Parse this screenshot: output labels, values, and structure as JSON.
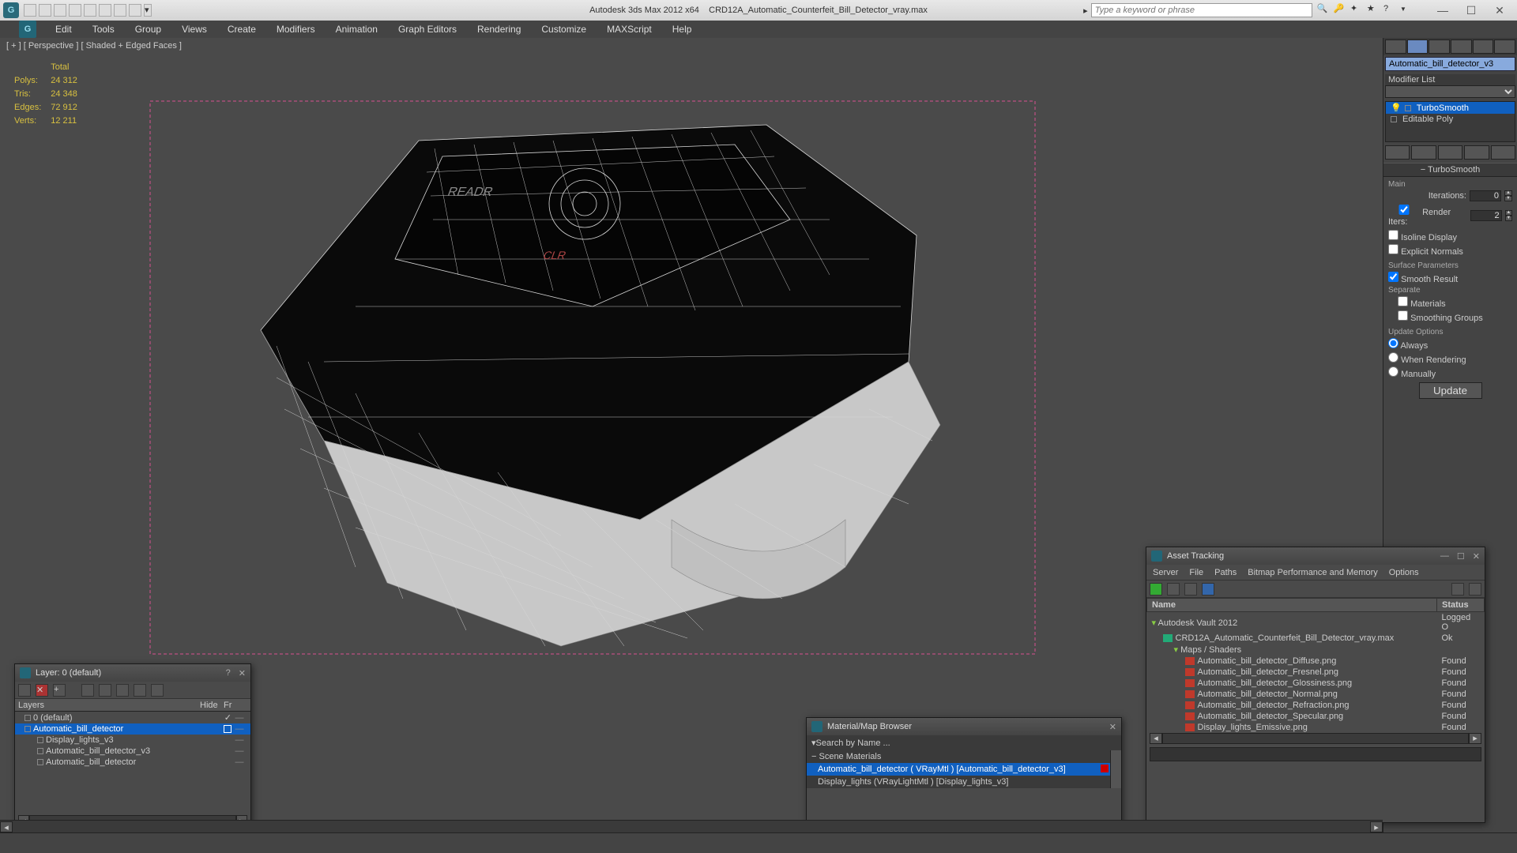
{
  "app": {
    "title_left": "Autodesk 3ds Max 2012 x64",
    "title_right": "CRD12A_Automatic_Counterfeit_Bill_Detector_vray.max",
    "search_placeholder": "Type a keyword or phrase"
  },
  "menubar": [
    "Edit",
    "Tools",
    "Group",
    "Views",
    "Create",
    "Modifiers",
    "Animation",
    "Graph Editors",
    "Rendering",
    "Customize",
    "MAXScript",
    "Help"
  ],
  "viewport": {
    "label": "[ + ] [ Perspective ] [ Shaded + Edged Faces ]",
    "stats": {
      "header": "Total",
      "rows": [
        {
          "k": "Polys:",
          "v": "24 312"
        },
        {
          "k": "Tris:",
          "v": "24 348"
        },
        {
          "k": "Edges:",
          "v": "72 912"
        },
        {
          "k": "Verts:",
          "v": "12 211"
        }
      ]
    }
  },
  "command_panel": {
    "object_name": "Automatic_bill_detector_v3",
    "modifier_list_label": "Modifier List",
    "stack": [
      {
        "name": "TurboSmooth",
        "selected": true,
        "bulb": true
      },
      {
        "name": "Editable Poly",
        "selected": false,
        "bulb": false
      }
    ],
    "rollout_title": "TurboSmooth",
    "main_label": "Main",
    "iterations_label": "Iterations:",
    "iterations_value": "0",
    "render_iters_label": "Render Iters:",
    "render_iters_value": "2",
    "isoline": "Isoline Display",
    "explicit": "Explicit Normals",
    "surface_params": "Surface Parameters",
    "smooth_result": "Smooth Result",
    "separate": "Separate",
    "sep_materials": "Materials",
    "sep_smoothing": "Smoothing Groups",
    "update_options": "Update Options",
    "update_always": "Always",
    "update_render": "When Rendering",
    "update_manual": "Manually",
    "update_btn": "Update"
  },
  "layer_panel": {
    "title": "Layer: 0 (default)",
    "col_layers": "Layers",
    "col_hide": "Hide",
    "col_fr": "Fr",
    "items": [
      {
        "name": "0 (default)",
        "indent": 0,
        "sel": false,
        "checked": true
      },
      {
        "name": "Automatic_bill_detector",
        "indent": 0,
        "sel": true,
        "checked": false,
        "box": true
      },
      {
        "name": "Display_lights_v3",
        "indent": 1,
        "sel": false
      },
      {
        "name": "Automatic_bill_detector_v3",
        "indent": 1,
        "sel": false
      },
      {
        "name": "Automatic_bill_detector",
        "indent": 1,
        "sel": false
      }
    ]
  },
  "material_panel": {
    "title": "Material/Map Browser",
    "search": "Search by Name ...",
    "category": "Scene Materials",
    "items": [
      {
        "name": "Automatic_bill_detector ( VRayMtl ) [Automatic_bill_detector_v3]",
        "sel": true
      },
      {
        "name": "Display_lights (VRayLightMtl ) [Display_lights_v3]",
        "sel": false
      }
    ]
  },
  "asset_panel": {
    "title": "Asset Tracking",
    "menu": [
      "Server",
      "File",
      "Paths",
      "Bitmap Performance and Memory",
      "Options"
    ],
    "col_name": "Name",
    "col_status": "Status",
    "rows": [
      {
        "name": "Autodesk Vault 2012",
        "status": "Logged O",
        "indent": 0,
        "type": "folder"
      },
      {
        "name": "CRD12A_Automatic_Counterfeit_Bill_Detector_vray.max",
        "status": "Ok",
        "indent": 1,
        "type": "max"
      },
      {
        "name": "Maps / Shaders",
        "status": "",
        "indent": 2,
        "type": "folder"
      },
      {
        "name": "Automatic_bill_detector_Diffuse.png",
        "status": "Found",
        "indent": 3,
        "type": "img"
      },
      {
        "name": "Automatic_bill_detector_Fresnel.png",
        "status": "Found",
        "indent": 3,
        "type": "img"
      },
      {
        "name": "Automatic_bill_detector_Glossiness.png",
        "status": "Found",
        "indent": 3,
        "type": "img"
      },
      {
        "name": "Automatic_bill_detector_Normal.png",
        "status": "Found",
        "indent": 3,
        "type": "img"
      },
      {
        "name": "Automatic_bill_detector_Refraction.png",
        "status": "Found",
        "indent": 3,
        "type": "img"
      },
      {
        "name": "Automatic_bill_detector_Specular.png",
        "status": "Found",
        "indent": 3,
        "type": "img"
      },
      {
        "name": "Display_lights_Emissive.png",
        "status": "Found",
        "indent": 3,
        "type": "img"
      }
    ]
  }
}
